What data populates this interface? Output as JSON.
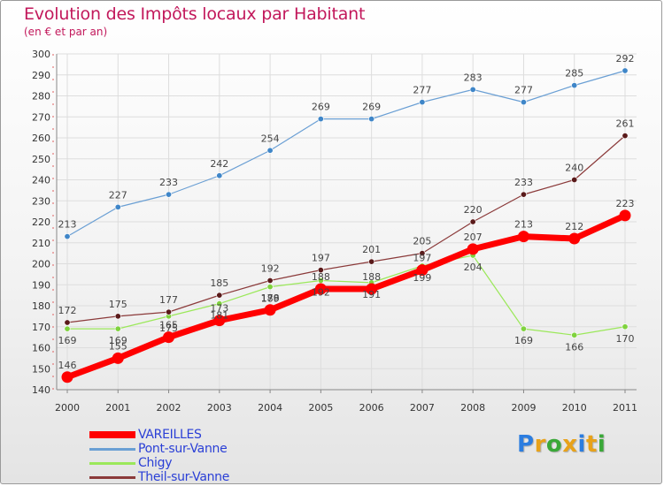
{
  "title": "Evolution des Impôts locaux par Habitant",
  "subtitle": "(en € et par an)",
  "brand": {
    "text": "Proxiti",
    "letters": [
      "P",
      "r",
      "o",
      "x",
      "i",
      "t",
      "i"
    ],
    "colors": [
      "#2b7de0",
      "#e8a21a",
      "#3aa838",
      "#e8a21a",
      "#2b7de0",
      "#e8a21a",
      "#3aa838"
    ]
  },
  "chart_data": {
    "type": "line",
    "title": "Evolution des Impôts locaux par Habitant",
    "subtitle": "(en € et par an)",
    "xlabel": "",
    "ylabel": "",
    "categories": [
      "2000",
      "2001",
      "2002",
      "2003",
      "2004",
      "2005",
      "2006",
      "2007",
      "2008",
      "2009",
      "2010",
      "2011"
    ],
    "ylim": [
      140,
      300
    ],
    "yticks": [
      140,
      150,
      160,
      170,
      180,
      190,
      200,
      210,
      220,
      230,
      240,
      250,
      260,
      270,
      280,
      290,
      300
    ],
    "grid": true,
    "legend_position": "bottom-left",
    "series": [
      {
        "name": "Pont-sur-Vanne",
        "color": "#6a9fd4",
        "marker": "#3f86c8",
        "width": 1.2,
        "values": [
          213,
          227,
          233,
          242,
          254,
          269,
          269,
          277,
          283,
          277,
          285,
          292
        ],
        "label_pos": "above"
      },
      {
        "name": "Chigy",
        "color": "#9be85a",
        "marker": "#7fd23e",
        "width": 1.2,
        "values": [
          169,
          169,
          175,
          181,
          189,
          192,
          191,
          199,
          204,
          169,
          166,
          170
        ],
        "label_pos": "below"
      },
      {
        "name": "Theil-sur-Vanne",
        "color": "#8b3a3a",
        "marker": "#5a1a1a",
        "width": 1.2,
        "values": [
          172,
          175,
          177,
          185,
          192,
          197,
          201,
          205,
          220,
          233,
          240,
          261
        ],
        "label_pos": "above"
      },
      {
        "name": "VAREILLES",
        "color": "#ff0000",
        "marker": "#ff0000",
        "width": 7,
        "values": [
          146,
          155,
          165,
          173,
          178,
          188,
          188,
          197,
          207,
          213,
          212,
          223
        ],
        "label_pos": "above"
      }
    ],
    "legend": [
      "VAREILLES",
      "Pont-sur-Vanne",
      "Chigy",
      "Theil-sur-Vanne"
    ]
  }
}
